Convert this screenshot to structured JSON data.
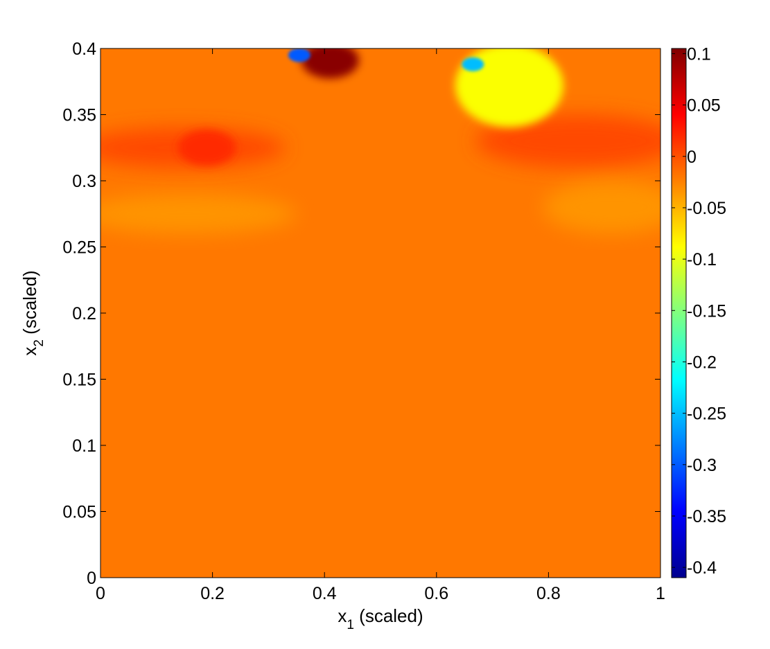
{
  "chart_data": {
    "type": "heatmap",
    "title": "",
    "xlabel": "x",
    "xlabel_sub": "1",
    "xlabel_suffix": " (scaled)",
    "ylabel": "x",
    "ylabel_sub": "2",
    "ylabel_suffix": " (scaled)",
    "xlim": [
      0,
      1
    ],
    "ylim": [
      0,
      0.4
    ],
    "x_ticks": [
      "0",
      "0.2",
      "0.4",
      "0.6",
      "0.8",
      "1"
    ],
    "y_ticks": [
      "0",
      "0.05",
      "0.1",
      "0.15",
      "0.2",
      "0.25",
      "0.3",
      "0.35",
      "0.4"
    ],
    "colorbar": {
      "range": [
        -0.41,
        0.105
      ],
      "colormap": "jet",
      "ticks": [
        "0.1",
        "0.05",
        "0",
        "-0.05",
        "-0.1",
        "-0.15",
        "-0.2",
        "-0.25",
        "-0.3",
        "-0.35",
        "-0.4"
      ]
    },
    "background_value": -0.02,
    "field_features": [
      {
        "kind": "band",
        "x": [
          0,
          0.33
        ],
        "y": [
          0.31,
          0.34
        ],
        "value": 0.005
      },
      {
        "kind": "band",
        "x": [
          0.67,
          1
        ],
        "y": [
          0.31,
          0.35
        ],
        "value": 0.005
      },
      {
        "kind": "band",
        "x": [
          0,
          0.35
        ],
        "y": [
          0.26,
          0.29
        ],
        "value": -0.035
      },
      {
        "kind": "band",
        "x": [
          0.79,
          1
        ],
        "y": [
          0.26,
          0.3
        ],
        "value": -0.035
      },
      {
        "kind": "spot",
        "x": 0.19,
        "y": 0.325,
        "value": 0.02
      },
      {
        "kind": "spot",
        "x": 0.41,
        "y": 0.391,
        "value": 0.1
      },
      {
        "kind": "spot",
        "x": 0.73,
        "y": 0.372,
        "value": -0.09
      },
      {
        "kind": "spot",
        "x": 0.665,
        "y": 0.388,
        "value": -0.25
      },
      {
        "kind": "spot",
        "x": 0.355,
        "y": 0.395,
        "value": -0.3
      }
    ]
  }
}
